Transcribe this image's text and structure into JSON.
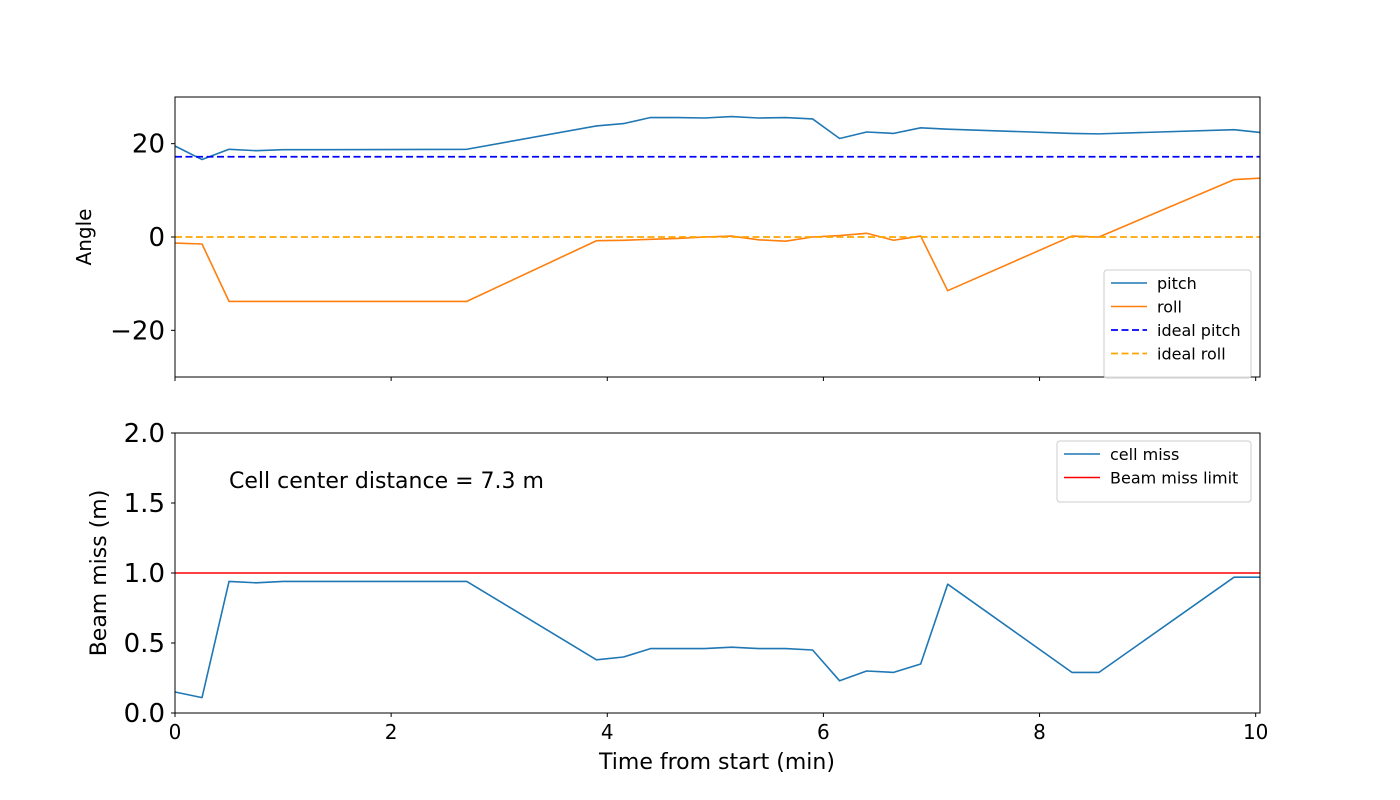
{
  "chart_data": [
    {
      "type": "line",
      "ylabel": "Angle",
      "xlim": [
        0,
        10.04
      ],
      "ylim": [
        -30,
        30
      ],
      "yticks": [
        {
          "v": 20,
          "label": "20"
        },
        {
          "v": 0,
          "label": "0"
        },
        {
          "v": -20,
          "label": "−20"
        }
      ],
      "xticks": [
        0,
        2,
        4,
        6,
        8,
        10
      ],
      "legend_position": "lower-right",
      "x": [
        0,
        0.25,
        0.5,
        0.75,
        1.0,
        1.3,
        2.7,
        3.9,
        4.15,
        4.4,
        4.65,
        4.9,
        5.15,
        5.4,
        5.65,
        5.9,
        6.15,
        6.4,
        6.65,
        6.9,
        7.15,
        8.3,
        8.55,
        9.8,
        10.04
      ],
      "series": [
        {
          "name": "pitch",
          "color": "#1f77b4",
          "style": "solid",
          "values": [
            19.5,
            16.6,
            18.8,
            18.5,
            18.7,
            18.7,
            18.8,
            23.8,
            24.3,
            25.6,
            25.6,
            25.5,
            25.8,
            25.5,
            25.6,
            25.3,
            21.1,
            22.5,
            22.2,
            23.4,
            23.1,
            22.2,
            22.1,
            23.0,
            22.4
          ]
        },
        {
          "name": "roll",
          "color": "#ff7f0e",
          "style": "solid",
          "values": [
            -1.3,
            -1.5,
            -13.8,
            -13.8,
            -13.8,
            -13.8,
            -13.8,
            -0.8,
            -0.7,
            -0.5,
            -0.3,
            0.0,
            0.2,
            -0.6,
            -0.9,
            0.0,
            0.3,
            0.8,
            -0.7,
            0.2,
            -11.5,
            0.2,
            0.0,
            12.3,
            12.6
          ]
        },
        {
          "name": "ideal pitch",
          "color": "#0000ff",
          "style": "dashed",
          "constant": 17.2
        },
        {
          "name": "ideal roll",
          "color": "#ffa500",
          "style": "dashed",
          "constant": 0.0
        }
      ]
    },
    {
      "type": "line",
      "ylabel": "Beam miss (m)",
      "xlabel": "Time from start (min)",
      "xlim": [
        0,
        10.04
      ],
      "ylim": [
        0,
        2.0
      ],
      "yticks": [
        {
          "v": 0.0,
          "label": "0.0"
        },
        {
          "v": 0.5,
          "label": "0.5"
        },
        {
          "v": 1.0,
          "label": "1.0"
        },
        {
          "v": 1.5,
          "label": "1.5"
        },
        {
          "v": 2.0,
          "label": "2.0"
        }
      ],
      "xticks": [
        0,
        2,
        4,
        6,
        8,
        10
      ],
      "legend_position": "upper-right",
      "annotation": "Cell center distance = 7.3 m",
      "x": [
        0,
        0.25,
        0.5,
        0.75,
        1.0,
        1.3,
        2.7,
        3.9,
        4.15,
        4.4,
        4.65,
        4.9,
        5.15,
        5.4,
        5.65,
        5.9,
        6.15,
        6.4,
        6.65,
        6.9,
        7.15,
        8.3,
        8.55,
        9.8,
        10.04
      ],
      "series": [
        {
          "name": "cell miss",
          "color": "#1f77b4",
          "style": "solid",
          "values": [
            0.15,
            0.11,
            0.94,
            0.93,
            0.94,
            0.94,
            0.94,
            0.38,
            0.4,
            0.46,
            0.46,
            0.46,
            0.47,
            0.46,
            0.46,
            0.45,
            0.23,
            0.3,
            0.29,
            0.35,
            0.92,
            0.29,
            0.29,
            0.97,
            0.97
          ]
        },
        {
          "name": "Beam miss limit",
          "color": "#ff0000",
          "style": "solid",
          "constant": 1.0
        }
      ]
    }
  ]
}
